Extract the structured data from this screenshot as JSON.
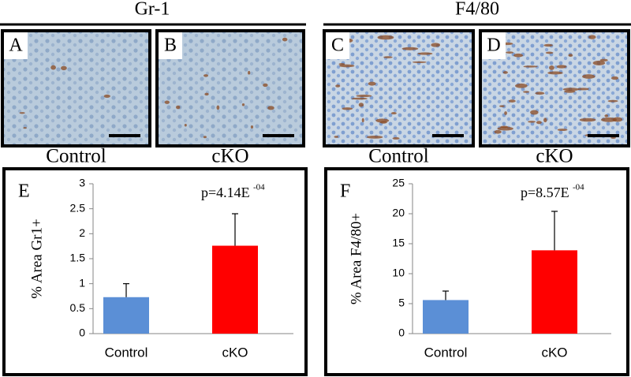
{
  "groups": [
    {
      "title": "Gr-1"
    },
    {
      "title": "F4/80"
    }
  ],
  "images": [
    {
      "panel": "A",
      "label": "Control"
    },
    {
      "panel": "B",
      "label": "cKO"
    },
    {
      "panel": "C",
      "label": "Control"
    },
    {
      "panel": "D",
      "label": "cKO"
    }
  ],
  "chart_data": [
    {
      "type": "bar",
      "panel": "E",
      "ylabel": "% Area Gr1+",
      "categories": [
        "Control",
        "cKO"
      ],
      "values": [
        0.73,
        1.76
      ],
      "errors": [
        0.27,
        0.64
      ],
      "colors": [
        "#5b8fd6",
        "#ff0000"
      ],
      "ylim": [
        0,
        3
      ],
      "yticks": [
        0,
        0.5,
        1,
        1.5,
        2,
        2.5,
        3
      ],
      "annotation": {
        "text": "p=4.14E",
        "exponent": "-04"
      }
    },
    {
      "type": "bar",
      "panel": "F",
      "ylabel": "% Area F4/80+",
      "categories": [
        "Control",
        "cKO"
      ],
      "values": [
        5.6,
        13.9
      ],
      "errors": [
        1.5,
        6.5
      ],
      "colors": [
        "#5b8fd6",
        "#ff0000"
      ],
      "ylim": [
        0,
        25
      ],
      "yticks": [
        0,
        5,
        10,
        15,
        20,
        25
      ],
      "annotation": {
        "text": "p=8.57E",
        "exponent": "-04"
      }
    }
  ]
}
